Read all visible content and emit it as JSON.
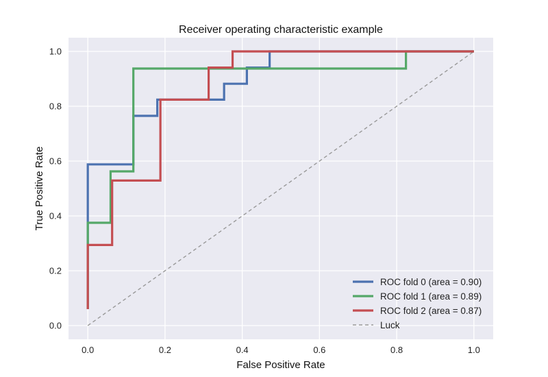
{
  "chart_data": {
    "type": "line",
    "title": "Receiver operating characteristic example",
    "xlabel": "False Positive Rate",
    "ylabel": "True Positive Rate",
    "xlim": [
      -0.05,
      1.05
    ],
    "ylim": [
      -0.05,
      1.05
    ],
    "xticks": [
      "0.0",
      "0.2",
      "0.4",
      "0.6",
      "0.8",
      "1.0"
    ],
    "yticks": [
      "0.0",
      "0.2",
      "0.4",
      "0.6",
      "0.8",
      "1.0"
    ],
    "grid": true,
    "legend_position": "lower-right",
    "series": [
      {
        "name": "ROC fold 0 (area = 0.90)",
        "color": "#4c72b0",
        "x": [
          0.0,
          0.0,
          0.118,
          0.118,
          0.18,
          0.18,
          0.353,
          0.353,
          0.412,
          0.412,
          0.471,
          0.471,
          1.0
        ],
        "y": [
          0.06,
          0.588,
          0.588,
          0.765,
          0.765,
          0.824,
          0.824,
          0.882,
          0.882,
          0.941,
          0.941,
          1.0,
          1.0
        ]
      },
      {
        "name": "ROC fold 1 (area = 0.89)",
        "color": "#55a868",
        "x": [
          0.0,
          0.0,
          0.059,
          0.059,
          0.118,
          0.118,
          0.824,
          0.824,
          1.0
        ],
        "y": [
          0.06,
          0.375,
          0.375,
          0.5625,
          0.5625,
          0.9375,
          0.9375,
          1.0,
          1.0
        ]
      },
      {
        "name": "ROC fold 2 (area = 0.87)",
        "color": "#c44e52",
        "x": [
          0.0,
          0.0,
          0.063,
          0.063,
          0.188,
          0.188,
          0.313,
          0.313,
          0.375,
          0.375,
          1.0
        ],
        "y": [
          0.06,
          0.294,
          0.294,
          0.529,
          0.529,
          0.824,
          0.824,
          0.941,
          0.941,
          1.0,
          1.0
        ]
      }
    ],
    "reference": {
      "name": "Luck",
      "color": "#999999",
      "x": [
        0.0,
        1.0
      ],
      "y": [
        0.0,
        1.0
      ]
    }
  }
}
